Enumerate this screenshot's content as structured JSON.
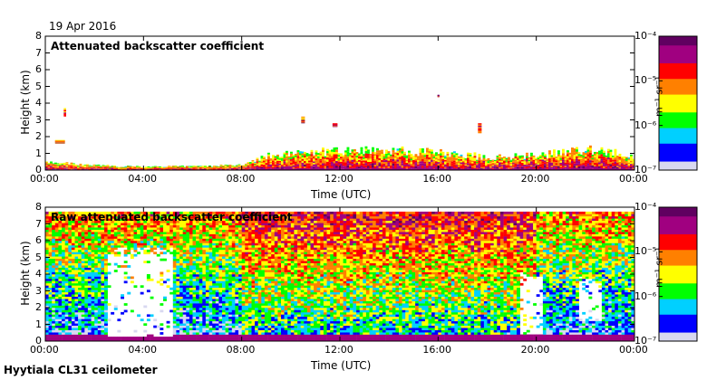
{
  "header": {
    "date": "19 Apr 2016"
  },
  "footer": {
    "site": "Hyytiala CL31 ceilometer"
  },
  "colors": {
    "scale": [
      "#d8d8f0",
      "#0000ff",
      "#00d0ff",
      "#00ff00",
      "#ffff00",
      "#ff8000",
      "#ff0000",
      "#a00080",
      "#600060"
    ]
  },
  "chart_data": [
    {
      "type": "heatmap",
      "title": "Attenuated backscatter coefficient",
      "xlabel": "Time (UTC)",
      "ylabel": "Height (km)",
      "x_ticks": [
        "00:00",
        "04:00",
        "08:00",
        "12:00",
        "16:00",
        "20:00",
        "00:00"
      ],
      "xlim": [
        0,
        24
      ],
      "ylim": [
        0,
        8
      ],
      "y_ticks": [
        "0",
        "1",
        "2",
        "3",
        "4",
        "5",
        "6",
        "7",
        "8"
      ],
      "colorbar": {
        "label": "m⁻¹ sr⁻¹",
        "ticks": [
          "10⁻⁷",
          "10⁻⁶",
          "10⁻⁵",
          "10⁻⁴"
        ],
        "range_log10": [
          -7,
          -4
        ]
      },
      "boundary_layer_top_km": [
        {
          "t": 0,
          "h": 0.5
        },
        {
          "t": 1,
          "h": 0.4
        },
        {
          "t": 2,
          "h": 0.3
        },
        {
          "t": 4,
          "h": 0.2
        },
        {
          "t": 8,
          "h": 0.3
        },
        {
          "t": 9,
          "h": 0.9
        },
        {
          "t": 10,
          "h": 1.0
        },
        {
          "t": 12,
          "h": 1.2
        },
        {
          "t": 14,
          "h": 1.3
        },
        {
          "t": 16,
          "h": 1.1
        },
        {
          "t": 18,
          "h": 0.8
        },
        {
          "t": 20,
          "h": 0.9
        },
        {
          "t": 22,
          "h": 1.3
        },
        {
          "t": 24,
          "h": 0.9
        }
      ],
      "cloud_features": [
        {
          "t": 0.6,
          "h": 1.6,
          "dh": 0.2,
          "dt": 0.4
        },
        {
          "t": 0.8,
          "h": 3.2,
          "dh": 0.5,
          "dt": 0.1
        },
        {
          "t": 10.5,
          "h": 2.8,
          "dh": 0.4,
          "dt": 0.15
        },
        {
          "t": 11.8,
          "h": 2.6,
          "dh": 0.2,
          "dt": 0.2
        },
        {
          "t": 16.0,
          "h": 4.4,
          "dh": 0.1,
          "dt": 0.05
        },
        {
          "t": 17.7,
          "h": 2.2,
          "dh": 0.6,
          "dt": 0.15
        }
      ]
    },
    {
      "type": "heatmap",
      "title": "Raw attenuated backscatter coefficient",
      "xlabel": "Time (UTC)",
      "ylabel": "Height (km)",
      "x_ticks": [
        "00:00",
        "04:00",
        "08:00",
        "12:00",
        "16:00",
        "20:00",
        "00:00"
      ],
      "xlim": [
        0,
        24
      ],
      "ylim": [
        0,
        8
      ],
      "y_ticks": [
        "0",
        "1",
        "2",
        "3",
        "4",
        "5",
        "6",
        "7",
        "8"
      ],
      "colorbar": {
        "label": "m⁻¹ sr⁻¹",
        "ticks": [
          "10⁻⁷",
          "10⁻⁶",
          "10⁻⁵",
          "10⁻⁴"
        ],
        "range_log10": [
          -7,
          -4
        ]
      },
      "clear_gaps": [
        {
          "t0": 2.5,
          "t1": 5.2,
          "h0": 0.3,
          "h1": 5.0
        },
        {
          "t0": 19.3,
          "t1": 20.2,
          "h0": 0.4,
          "h1": 3.6
        },
        {
          "t0": 21.8,
          "t1": 22.6,
          "h0": 1.2,
          "h1": 3.4
        }
      ]
    }
  ]
}
